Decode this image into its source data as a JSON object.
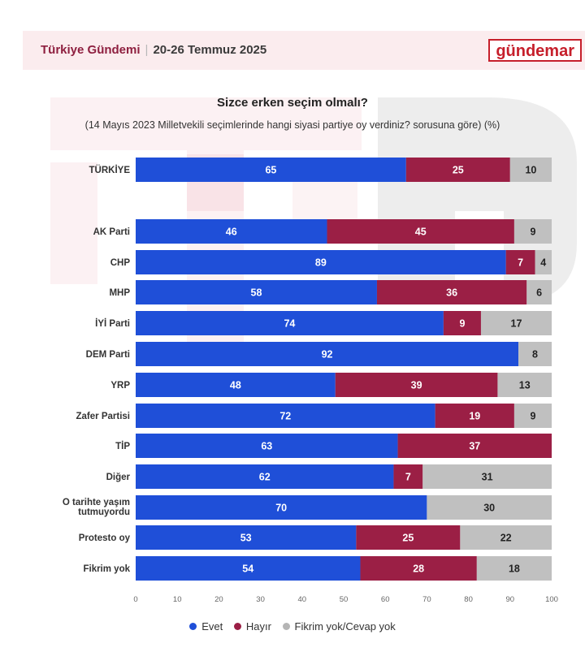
{
  "header": {
    "brand": "Türkiye Gündemi",
    "separator": "|",
    "date": "20-26 Temmuz 2025",
    "logo_text": "gündemar"
  },
  "colors": {
    "evet": "#1f4fd8",
    "hayir": "#9b1f45",
    "fikrim_yok": "#c0c0c0",
    "accent": "#c61f2b",
    "header_bg": "#fbecee"
  },
  "chart_data": {
    "type": "bar",
    "orientation": "horizontal",
    "stacked": true,
    "title": "Sizce erken seçim olmalı?",
    "subtitle": "(14 Mayıs 2023 Milletvekili seçimlerinde hangi siyasi partiye oy verdiniz? sorusuna göre) (%)",
    "categories": [
      "TÜRKİYE",
      "AK Parti",
      "CHP",
      "MHP",
      "İYİ Parti",
      "DEM Parti",
      "YRP",
      "Zafer Partisi",
      "TİP",
      "Diğer",
      "O tarihte yaşım tutmuyordu",
      "Protesto oy",
      "Fikrim yok"
    ],
    "series": [
      {
        "name": "Evet",
        "values": [
          65,
          46,
          89,
          58,
          74,
          92,
          48,
          72,
          63,
          62,
          70,
          53,
          54
        ]
      },
      {
        "name": "Hayır",
        "values": [
          25,
          45,
          7,
          36,
          9,
          0,
          39,
          19,
          37,
          7,
          0,
          25,
          28
        ]
      },
      {
        "name": "Fikrim yok/Cevap yok",
        "values": [
          10,
          9,
          4,
          6,
          17,
          8,
          13,
          9,
          0,
          31,
          30,
          22,
          18
        ]
      }
    ],
    "xlim": [
      0,
      100
    ],
    "xticks": [
      "0",
      "10",
      "20",
      "30",
      "40",
      "50",
      "60",
      "70",
      "80",
      "90",
      "100"
    ],
    "legend": {
      "position": "bottom",
      "labels": [
        "Evet",
        "Hayır",
        "Fikrim yok/Cevap yok"
      ]
    }
  }
}
